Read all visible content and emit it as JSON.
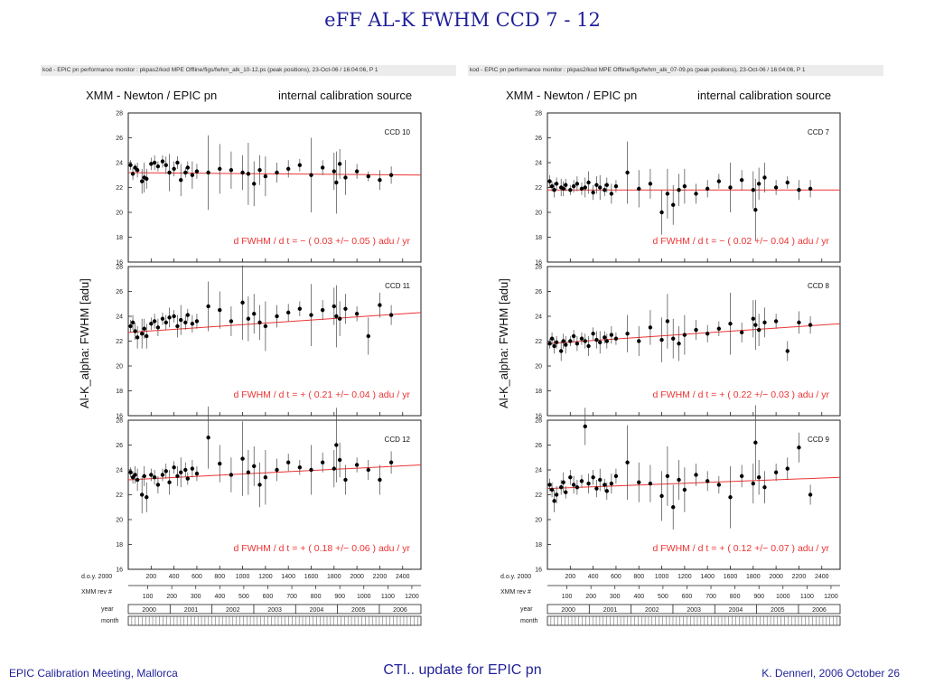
{
  "slide": {
    "title": "eFF   AL-K   FWHM   CCD 7 - 12",
    "footer_left": "EPIC Calibration Meeting, Mallorca",
    "footer_center": "CTI.. update for EPIC pn",
    "footer_right": "K. Dennerl, 2006 October 26"
  },
  "headers": {
    "left": "kod - EPIC pn performance monitor : pkpas2/kod     MPE   Offline/figs/fwhm_alk_10-12.ps (peak positions), 23-Oct-06 / 16:04:06, P   1",
    "right": "kod - EPIC pn performance monitor : pkpas2/kod     MPE   Offline/figs/fwhm_alk_07-09.ps (peak positions), 23-Oct-06 / 16:04:06, P   1"
  },
  "figure": {
    "instrument": "XMM - Newton  /  EPIC pn",
    "source": "internal calibration source",
    "ylabel": "Al-K_alpha:  FWHM  [adu]",
    "axis_doy_label": "d.o.y. 2000",
    "axis_rev_label": "XMM rev #",
    "axis_year_label": "year",
    "axis_month_label": "month"
  },
  "chart_data": [
    {
      "type": "scatter",
      "id": "ccd10",
      "ccd_label": "CCD 10",
      "fit_text": "d FWHM / d t = −  ( 0.03 +/− 0.05 )  adu / yr",
      "x": [
        20,
        40,
        60,
        80,
        120,
        140,
        160,
        200,
        230,
        260,
        300,
        330,
        360,
        400,
        430,
        460,
        500,
        520,
        560,
        600,
        700,
        800,
        900,
        1000,
        1050,
        1100,
        1150,
        1200,
        1300,
        1400,
        1500,
        1600,
        1700,
        1800,
        1820,
        1850,
        1900,
        2000,
        2100,
        2200,
        2300
      ],
      "y": [
        23.8,
        23.1,
        23.6,
        23.4,
        22.5,
        22.8,
        22.7,
        23.9,
        24.0,
        23.7,
        24.1,
        23.8,
        23.2,
        23.5,
        24.0,
        22.6,
        23.2,
        23.6,
        23.0,
        23.3,
        23.2,
        23.5,
        23.4,
        23.2,
        23.1,
        22.3,
        23.4,
        22.9,
        23.2,
        23.5,
        23.8,
        23.0,
        23.6,
        23.3,
        22.4,
        23.9,
        22.8,
        23.3,
        22.9,
        22.6,
        23.0
      ],
      "err": [
        0.4,
        0.5,
        0.3,
        0.6,
        1.0,
        1.2,
        0.8,
        0.5,
        0.6,
        0.4,
        0.5,
        0.7,
        1.5,
        0.6,
        0.5,
        1.3,
        0.4,
        0.5,
        1.1,
        0.6,
        3.0,
        2.0,
        1.5,
        1.4,
        2.5,
        1.8,
        1.2,
        1.6,
        0.8,
        0.7,
        0.5,
        3.0,
        0.6,
        1.5,
        2.5,
        1.2,
        1.4,
        0.6,
        0.4,
        0.8,
        0.7
      ],
      "fit": [
        23.2,
        23.0
      ],
      "ylim": [
        16,
        28
      ],
      "xlim": [
        0,
        2560
      ]
    },
    {
      "type": "scatter",
      "id": "ccd11",
      "ccd_label": "CCD 11",
      "fit_text": "d FWHM / d t = +  ( 0.21 +/− 0.04 )  adu / yr",
      "x": [
        20,
        40,
        60,
        80,
        120,
        140,
        160,
        200,
        230,
        260,
        300,
        330,
        360,
        400,
        430,
        460,
        500,
        520,
        560,
        600,
        700,
        800,
        900,
        1000,
        1050,
        1100,
        1150,
        1200,
        1300,
        1400,
        1500,
        1600,
        1700,
        1800,
        1820,
        1850,
        1900,
        2000,
        2100,
        2200,
        2300
      ],
      "y": [
        23.2,
        23.5,
        22.8,
        22.3,
        22.6,
        23.0,
        22.4,
        23.4,
        23.6,
        23.1,
        23.8,
        23.5,
        23.9,
        24.0,
        23.2,
        23.7,
        23.5,
        24.1,
        23.4,
        23.6,
        24.8,
        24.5,
        23.6,
        25.1,
        23.8,
        24.2,
        23.5,
        23.2,
        24.0,
        24.3,
        24.6,
        24.1,
        24.5,
        24.8,
        24.0,
        23.8,
        24.6,
        24.2,
        22.4,
        24.9,
        24.1
      ],
      "err": [
        0.5,
        0.6,
        0.7,
        0.9,
        1.2,
        0.8,
        1.0,
        0.5,
        0.6,
        0.7,
        0.5,
        0.6,
        0.8,
        0.5,
        0.9,
        1.2,
        0.6,
        0.5,
        0.7,
        0.6,
        2.0,
        1.5,
        1.2,
        3.0,
        1.8,
        1.6,
        1.4,
        2.0,
        0.9,
        0.7,
        0.6,
        2.5,
        0.8,
        1.5,
        2.5,
        1.4,
        1.2,
        0.6,
        1.5,
        1.0,
        0.8
      ],
      "fit": [
        22.7,
        24.3
      ],
      "ylim": [
        16,
        28
      ],
      "xlim": [
        0,
        2560
      ]
    },
    {
      "type": "scatter",
      "id": "ccd12",
      "ccd_label": "CCD 12",
      "fit_text": "d FWHM / d t = +  ( 0.18 +/− 0.06 )  adu / yr",
      "x": [
        20,
        40,
        60,
        80,
        120,
        140,
        160,
        200,
        230,
        260,
        300,
        330,
        360,
        400,
        430,
        460,
        500,
        520,
        560,
        600,
        700,
        800,
        900,
        1000,
        1050,
        1100,
        1150,
        1200,
        1300,
        1400,
        1500,
        1600,
        1700,
        1800,
        1820,
        1850,
        1900,
        2000,
        2100,
        2200,
        2300
      ],
      "y": [
        23.8,
        23.4,
        23.6,
        23.2,
        22.0,
        23.5,
        21.8,
        23.6,
        23.4,
        22.8,
        23.6,
        23.9,
        23.0,
        24.2,
        23.5,
        23.8,
        24.0,
        23.3,
        24.1,
        23.7,
        26.6,
        24.5,
        23.6,
        24.9,
        23.8,
        24.3,
        22.8,
        23.4,
        24.0,
        24.6,
        24.2,
        24.0,
        24.6,
        24.1,
        26.0,
        24.8,
        23.2,
        24.4,
        24.0,
        23.2,
        24.6
      ],
      "err": [
        0.4,
        0.5,
        0.7,
        0.9,
        1.5,
        0.8,
        1.2,
        0.5,
        0.6,
        0.7,
        0.5,
        0.6,
        1.0,
        0.5,
        0.8,
        1.2,
        0.6,
        0.5,
        0.7,
        0.6,
        2.5,
        1.5,
        1.4,
        3.0,
        1.8,
        1.6,
        1.8,
        2.2,
        0.9,
        0.7,
        0.6,
        2.0,
        0.8,
        1.5,
        3.0,
        1.4,
        1.2,
        0.6,
        0.8,
        1.2,
        0.9
      ],
      "fit": [
        23.2,
        24.4
      ],
      "ylim": [
        16,
        28
      ],
      "xlim": [
        0,
        2560
      ]
    },
    {
      "type": "scatter",
      "id": "ccd7",
      "ccd_label": "CCD  7",
      "fit_text": "d FWHM / d t = −  ( 0.02 +/− 0.04 )  adu / yr",
      "x": [
        20,
        40,
        60,
        80,
        120,
        140,
        160,
        200,
        230,
        260,
        300,
        330,
        360,
        400,
        430,
        460,
        500,
        520,
        560,
        600,
        700,
        800,
        900,
        1000,
        1050,
        1100,
        1150,
        1200,
        1300,
        1400,
        1500,
        1600,
        1700,
        1800,
        1820,
        1850,
        1900,
        2000,
        2100,
        2200,
        2300
      ],
      "y": [
        22.5,
        22.1,
        21.8,
        22.3,
        22.0,
        21.9,
        22.2,
        21.8,
        22.1,
        22.3,
        21.9,
        22.0,
        22.4,
        21.6,
        22.2,
        22.0,
        21.8,
        22.2,
        21.5,
        22.1,
        23.2,
        21.9,
        22.3,
        20.0,
        21.5,
        20.6,
        21.8,
        22.1,
        21.5,
        21.9,
        22.5,
        22.0,
        22.6,
        21.8,
        20.2,
        22.3,
        22.8,
        22.0,
        22.4,
        21.8,
        21.9
      ],
      "err": [
        0.5,
        0.4,
        0.6,
        0.5,
        0.7,
        0.6,
        0.5,
        0.4,
        0.5,
        0.6,
        0.5,
        0.8,
        0.9,
        0.6,
        0.7,
        1.0,
        0.5,
        0.6,
        0.8,
        0.5,
        2.5,
        1.5,
        1.2,
        1.8,
        2.0,
        1.6,
        1.3,
        1.4,
        0.8,
        0.7,
        0.6,
        2.0,
        0.8,
        1.5,
        2.5,
        1.3,
        1.2,
        0.6,
        0.5,
        0.8,
        0.7
      ],
      "fit": [
        21.8,
        21.8
      ],
      "ylim": [
        16,
        28
      ],
      "xlim": [
        0,
        2560
      ]
    },
    {
      "type": "scatter",
      "id": "ccd8",
      "ccd_label": "CCD  8",
      "fit_text": "d FWHM / d t = +  ( 0.22 +/− 0.03 )  adu / yr",
      "x": [
        20,
        40,
        60,
        80,
        120,
        140,
        160,
        200,
        230,
        260,
        300,
        330,
        360,
        400,
        430,
        460,
        500,
        520,
        560,
        600,
        700,
        800,
        900,
        1000,
        1050,
        1100,
        1150,
        1200,
        1300,
        1400,
        1500,
        1600,
        1700,
        1800,
        1820,
        1850,
        1900,
        2000,
        2100,
        2200,
        2300
      ],
      "y": [
        21.8,
        22.2,
        21.6,
        21.9,
        21.2,
        22.0,
        21.7,
        22.0,
        22.4,
        21.8,
        22.2,
        22.0,
        21.6,
        22.6,
        22.1,
        21.9,
        22.3,
        22.0,
        22.5,
        22.2,
        22.6,
        22.0,
        23.1,
        22.1,
        23.6,
        22.2,
        21.8,
        22.5,
        22.9,
        22.6,
        23.0,
        23.4,
        22.7,
        23.8,
        23.3,
        22.9,
        23.5,
        23.6,
        21.2,
        23.5,
        23.3
      ],
      "err": [
        0.4,
        0.5,
        0.6,
        0.5,
        0.8,
        0.6,
        0.7,
        0.4,
        0.5,
        0.6,
        0.5,
        0.6,
        0.8,
        0.5,
        0.7,
        0.9,
        0.5,
        0.6,
        0.7,
        0.5,
        1.5,
        1.2,
        1.4,
        1.8,
        2.2,
        1.6,
        1.4,
        1.6,
        0.8,
        0.7,
        0.6,
        2.5,
        0.8,
        1.5,
        2.0,
        1.3,
        1.2,
        0.6,
        0.8,
        0.9,
        0.7
      ],
      "fit": [
        21.8,
        23.4
      ],
      "ylim": [
        16,
        28
      ],
      "xlim": [
        0,
        2560
      ]
    },
    {
      "type": "scatter",
      "id": "ccd9",
      "ccd_label": "CCD  9",
      "fit_text": "d FWHM / d t = +  ( 0.12 +/− 0.07 )  adu / yr",
      "x": [
        20,
        40,
        60,
        80,
        120,
        140,
        160,
        200,
        230,
        260,
        300,
        330,
        360,
        400,
        430,
        460,
        500,
        520,
        560,
        600,
        700,
        800,
        900,
        1000,
        1050,
        1100,
        1150,
        1200,
        1300,
        1400,
        1500,
        1600,
        1700,
        1800,
        1820,
        1850,
        1900,
        2000,
        2100,
        2200,
        2300
      ],
      "y": [
        22.8,
        22.4,
        21.5,
        22.0,
        22.6,
        23.0,
        22.2,
        23.4,
        22.8,
        22.6,
        23.1,
        27.5,
        22.9,
        23.4,
        22.5,
        23.2,
        22.8,
        22.3,
        22.9,
        23.5,
        24.6,
        23.0,
        22.9,
        21.9,
        23.5,
        21.0,
        23.2,
        22.4,
        23.6,
        23.1,
        22.8,
        21.8,
        23.5,
        22.9,
        26.2,
        23.4,
        22.6,
        23.8,
        24.1,
        25.8,
        22.0
      ],
      "err": [
        0.5,
        0.6,
        0.9,
        0.7,
        0.6,
        0.8,
        0.5,
        0.6,
        0.7,
        0.6,
        0.5,
        1.5,
        0.8,
        0.6,
        0.7,
        0.9,
        0.5,
        0.7,
        0.8,
        0.6,
        3.0,
        1.6,
        1.5,
        2.0,
        2.4,
        1.8,
        1.6,
        1.8,
        0.9,
        0.8,
        0.7,
        2.5,
        0.9,
        1.6,
        3.0,
        1.4,
        1.3,
        0.7,
        0.9,
        1.2,
        0.8
      ],
      "fit": [
        22.5,
        23.4
      ],
      "ylim": [
        16,
        28
      ],
      "xlim": [
        0,
        2560
      ]
    }
  ],
  "axis": {
    "yticks": [
      "16",
      "18",
      "20",
      "22",
      "24",
      "26",
      "28"
    ],
    "doy_ticks": [
      200,
      400,
      600,
      800,
      1000,
      1200,
      1400,
      1600,
      1800,
      2000,
      2200,
      2400
    ],
    "rev_ticks": [
      100,
      200,
      300,
      400,
      500,
      600,
      700,
      800,
      900,
      1000,
      1100,
      1200
    ],
    "years": [
      "2000",
      "2001",
      "2002",
      "2003",
      "2004",
      "2005",
      "2006"
    ]
  },
  "colors": {
    "fit": "#ee3333",
    "title": "#1f1f9a",
    "points": "#000000"
  }
}
